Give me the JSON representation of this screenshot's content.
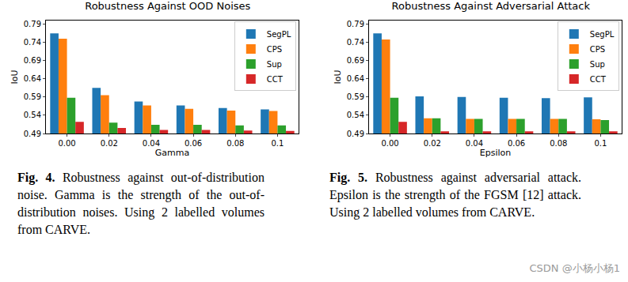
{
  "chart_data": [
    {
      "type": "bar",
      "title": "Robustness Against OOD Noises",
      "x_label": "Gamma",
      "y_label": "IoU",
      "categories": [
        "0.00",
        "0.02",
        "0.04",
        "0.06",
        "0.08",
        "0.1"
      ],
      "series": [
        {
          "name": "SegPL",
          "color": "#1f77b4",
          "values": [
            0.765,
            0.615,
            0.578,
            0.567,
            0.56,
            0.556
          ]
        },
        {
          "name": "CPS",
          "color": "#ff7f0e",
          "values": [
            0.75,
            0.595,
            0.567,
            0.558,
            0.553,
            0.552
          ]
        },
        {
          "name": "Sup",
          "color": "#2ca02c",
          "values": [
            0.588,
            0.52,
            0.514,
            0.514,
            0.512,
            0.512
          ]
        },
        {
          "name": "CCT",
          "color": "#d62728",
          "values": [
            0.522,
            0.505,
            0.5,
            0.5,
            0.498,
            0.497
          ]
        }
      ],
      "ylim": [
        0.49,
        0.8
      ],
      "yticks": [
        0.49,
        0.54,
        0.59,
        0.64,
        0.69,
        0.74,
        0.79
      ],
      "grid": false,
      "legend": "upper right",
      "caption_label": "Fig. 4.",
      "caption": "Robustness against out-of-distribution noise. Gamma is the strength of the out-of-distribution noises. Using 2 labelled volumes from CARVE."
    },
    {
      "type": "bar",
      "title": "Robustness Against Adversarial Attack",
      "x_label": "Epsilon",
      "y_label": "IoU",
      "categories": [
        "0.00",
        "0.02",
        "0.04",
        "0.06",
        "0.08",
        "0.1"
      ],
      "series": [
        {
          "name": "SegPL",
          "color": "#1f77b4",
          "values": [
            0.765,
            0.592,
            0.59,
            0.588,
            0.587,
            0.589
          ]
        },
        {
          "name": "CPS",
          "color": "#ff7f0e",
          "values": [
            0.748,
            0.532,
            0.53,
            0.53,
            0.53,
            0.529
          ]
        },
        {
          "name": "Sup",
          "color": "#2ca02c",
          "values": [
            0.588,
            0.532,
            0.53,
            0.53,
            0.53,
            0.527
          ]
        },
        {
          "name": "CCT",
          "color": "#d62728",
          "values": [
            0.522,
            0.496,
            0.496,
            0.496,
            0.496,
            0.496
          ]
        }
      ],
      "ylim": [
        0.49,
        0.8
      ],
      "yticks": [
        0.49,
        0.54,
        0.59,
        0.64,
        0.69,
        0.74,
        0.79
      ],
      "grid": false,
      "legend": "upper right",
      "caption_label": "Fig. 5.",
      "caption": "Robustness against adversarial attack. Epsilon is the strength of the FGSM [12] attack. Using 2 labelled volumes from CARVE."
    }
  ],
  "watermark": "CSDN @小杨小杨1"
}
